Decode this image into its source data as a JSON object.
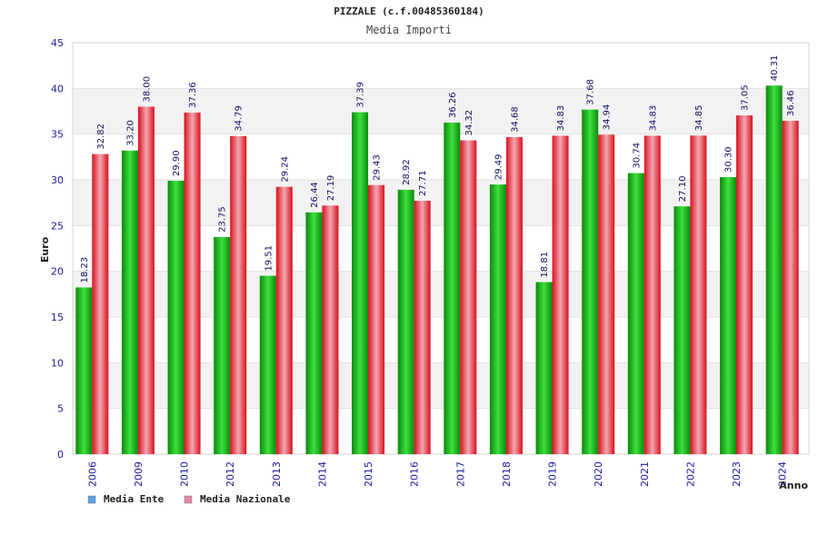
{
  "chart_data": {
    "type": "bar",
    "title": "PIZZALE (c.f.00485360184)",
    "subtitle": "Media Importi",
    "xlabel": "Anno",
    "ylabel": "Euro",
    "ylim": [
      0,
      45
    ],
    "yticks": [
      0,
      5,
      10,
      15,
      20,
      25,
      30,
      35,
      40,
      45
    ],
    "grid": true,
    "legend_position": "bottom-left",
    "categories": [
      "2006",
      "2009",
      "2010",
      "2012",
      "2013",
      "2014",
      "2015",
      "2016",
      "2017",
      "2018",
      "2019",
      "2020",
      "2021",
      "2022",
      "2023",
      "2024"
    ],
    "series": [
      {
        "name": "Media Ente",
        "color": "#1fc31f",
        "legend_color": "#5aa0e8",
        "values": [
          18.23,
          33.2,
          29.9,
          23.75,
          19.51,
          26.44,
          37.39,
          28.92,
          36.26,
          29.49,
          18.81,
          37.68,
          30.74,
          27.1,
          30.3,
          40.31
        ],
        "labels": [
          "18.23",
          "33.20",
          "29.90",
          "23.75",
          "19.51",
          "26.44",
          "37.39",
          "28.92",
          "36.26",
          "29.49",
          "18.81",
          "37.68",
          "30.74",
          "27.10",
          "30.30",
          "40.31"
        ]
      },
      {
        "name": "Media Nazionale",
        "color": "#e8303a",
        "legend_color": "#e48aa8",
        "values": [
          32.82,
          38.0,
          37.36,
          34.79,
          29.24,
          27.19,
          29.43,
          27.71,
          34.32,
          34.68,
          34.83,
          34.94,
          34.83,
          34.85,
          37.05,
          36.46
        ],
        "labels": [
          "32.82",
          "38.00",
          "37.36",
          "34.79",
          "29.24",
          "27.19",
          "29.43",
          "27.71",
          "34.32",
          "34.68",
          "34.83",
          "34.94",
          "34.83",
          "34.85",
          "37.05",
          "36.46"
        ]
      }
    ]
  }
}
